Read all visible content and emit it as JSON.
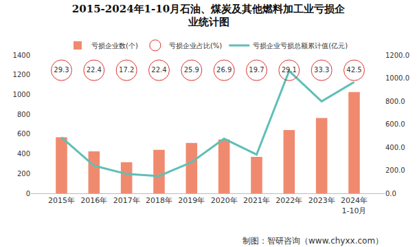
{
  "chart_data": {
    "type": "bar",
    "title": "2015-2024年1-10月石油、煤炭及其他燃料加工业亏损企\n业统计图",
    "categories": [
      "2015年",
      "2016年",
      "2017年",
      "2018年",
      "2019年",
      "2020年",
      "2021年",
      "2022年",
      "2023年",
      "2024年\n1-10月"
    ],
    "series": [
      {
        "name": "亏损企业数(个)",
        "type": "bar",
        "color": "#f08a6f",
        "values": [
          567,
          425,
          315,
          440,
          510,
          545,
          370,
          640,
          763,
          1025
        ]
      },
      {
        "name": "亏损企业占比(%)",
        "type": "scatter",
        "marker": "circle-open",
        "color": "#e03030",
        "data_labels": true,
        "values": [
          29.3,
          22.4,
          17.2,
          22.4,
          25.9,
          26.9,
          19.7,
          29.1,
          33.3,
          42.5
        ]
      },
      {
        "name": "亏损企业亏损总额累计值(亿元)",
        "type": "line",
        "axis": "y2",
        "color": "#5fbfb5",
        "values": [
          486,
          240,
          168,
          150,
          270,
          474,
          336,
          1062,
          798,
          966
        ]
      }
    ],
    "ylim": [
      0,
      1400
    ],
    "yticks": [
      0,
      200,
      400,
      600,
      800,
      1000,
      1200,
      1400
    ],
    "y2lim": [
      0,
      1200
    ],
    "y2ticks": [
      {
        "value": 0,
        "label": "0.0"
      },
      {
        "value": 200,
        "label": "200.0"
      },
      {
        "value": 400,
        "label": "400.0"
      },
      {
        "value": 600,
        "label": "600.0"
      },
      {
        "value": 800,
        "label": "800.0"
      },
      {
        "value": 1000,
        "label": "1000.0"
      },
      {
        "value": 1200,
        "label": "1200.0"
      }
    ],
    "grid": false,
    "legend": "top",
    "annotations": [
      "制图：智研咨询（www.chyxx.com）"
    ]
  }
}
